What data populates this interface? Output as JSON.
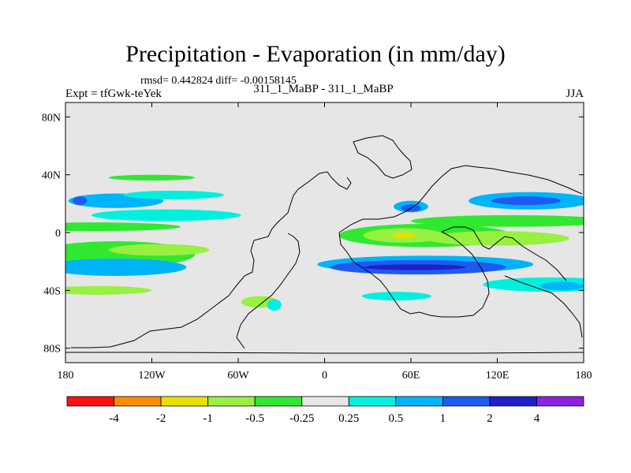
{
  "title": "Precipitation - Evaporation (in mm/day)",
  "stats": "rmsd= 0.442824 diff= -0.00158145",
  "experiment": "Expt = tfGwk-teYek",
  "comparison": "311_1_MaBP - 311_1_MaBP",
  "season": "JJA",
  "map": {
    "lon_ticks": [
      {
        "lon": -180,
        "label": "180"
      },
      {
        "lon": -120,
        "label": "120W"
      },
      {
        "lon": -60,
        "label": "60W"
      },
      {
        "lon": 0,
        "label": "0"
      },
      {
        "lon": 60,
        "label": "60E"
      },
      {
        "lon": 120,
        "label": "120E"
      },
      {
        "lon": 180,
        "label": "180"
      }
    ],
    "lat_ticks": [
      {
        "lat": 80,
        "label": "80N"
      },
      {
        "lat": 40,
        "label": "40N"
      },
      {
        "lat": 0,
        "label": "0"
      },
      {
        "lat": -40,
        "label": "40S"
      },
      {
        "lat": -80,
        "label": "80S"
      }
    ],
    "background_color": "#e6e6e6",
    "regions": [
      {
        "level": "-0.5",
        "lon": [
          -170,
          -120
        ],
        "lat": [
          -12,
          -18
        ],
        "rlon": 30,
        "rlat": 9
      },
      {
        "level": "-1",
        "lon": [
          -135,
          -95
        ],
        "lat": [
          -12,
          -12
        ],
        "rlon": 15,
        "rlat": 4
      },
      {
        "level": "-0.5",
        "lon": [
          -180,
          -140
        ],
        "lat": [
          4,
          4
        ],
        "rlon": 40,
        "rlat": 3
      },
      {
        "level": "0.5",
        "lon": [
          -160,
          -130
        ],
        "lat": [
          22,
          22
        ],
        "rlon": 18,
        "rlat": 5
      },
      {
        "level": "1",
        "lon": [
          -170,
          -170
        ],
        "lat": [
          22,
          22
        ],
        "rlon": 5,
        "rlat": 3
      },
      {
        "level": "0.5",
        "lon": [
          -170,
          -120
        ],
        "lat": [
          -24,
          -24
        ],
        "rlon": 24,
        "rlat": 6
      },
      {
        "level": "0.25",
        "lon": [
          -130,
          -90
        ],
        "lat": [
          12,
          12
        ],
        "rlon": 32,
        "rlat": 4
      },
      {
        "level": "0.25",
        "lon": [
          -120,
          -90
        ],
        "lat": [
          26,
          26
        ],
        "rlon": 20,
        "rlat": 3
      },
      {
        "level": "-0.5",
        "lon": [
          50,
          90
        ],
        "lat": [
          -2,
          -2
        ],
        "rlon": 40,
        "rlat": 8
      },
      {
        "level": "-1",
        "lon": [
          45,
          65
        ],
        "lat": [
          -2,
          -2
        ],
        "rlon": 18,
        "rlat": 5
      },
      {
        "level": "-2",
        "lon": [
          55,
          55
        ],
        "lat": [
          -2,
          -2
        ],
        "rlon": 8,
        "rlat": 2
      },
      {
        "level": "0.5",
        "lon": [
          40,
          100
        ],
        "lat": [
          -22,
          -22
        ],
        "rlon": 45,
        "rlat": 6
      },
      {
        "level": "1",
        "lon": [
          40,
          90
        ],
        "lat": [
          -24,
          -24
        ],
        "rlon": 36,
        "rlat": 5
      },
      {
        "level": "2",
        "lon": [
          45,
          80
        ],
        "lat": [
          -24,
          -24
        ],
        "rlon": 18,
        "rlat": 2
      },
      {
        "level": "0.5",
        "lon": [
          60,
          60
        ],
        "lat": [
          18,
          18
        ],
        "rlon": 12,
        "rlat": 4
      },
      {
        "level": "1",
        "lon": [
          60,
          60
        ],
        "lat": [
          17,
          17
        ],
        "rlon": 7,
        "rlat": 2.5
      },
      {
        "level": "0.5",
        "lon": [
          130,
          155
        ],
        "lat": [
          22,
          22
        ],
        "rlon": 30,
        "rlat": 6
      },
      {
        "level": "1",
        "lon": [
          130,
          150
        ],
        "lat": [
          22,
          22
        ],
        "rlon": 14,
        "rlat": 3
      },
      {
        "level": "-0.5",
        "lon": [
          100,
          160
        ],
        "lat": [
          8,
          8
        ],
        "rlon": 40,
        "rlat": 4
      },
      {
        "level": "0.25",
        "lon": [
          140,
          175
        ],
        "lat": [
          -36,
          -36
        ],
        "rlon": 30,
        "rlat": 5
      },
      {
        "level": "0.5",
        "lon": [
          160,
          170
        ],
        "lat": [
          -37,
          -37
        ],
        "rlon": 10,
        "rlat": 3
      },
      {
        "level": "-0.25",
        "lon": [
          100,
          140
        ],
        "lat": [
          -4,
          -4
        ],
        "rlon": 30,
        "rlat": 5
      },
      {
        "level": "-0.25",
        "lon": [
          -175,
          -140
        ],
        "lat": [
          -40,
          -40
        ],
        "rlon": 20,
        "rlat": 3
      },
      {
        "level": "-0.5",
        "lon": [
          -130,
          -110
        ],
        "lat": [
          38,
          38
        ],
        "rlon": 20,
        "rlat": 2
      },
      {
        "level": "0.25",
        "lon": [
          40,
          60
        ],
        "lat": [
          -44,
          -44
        ],
        "rlon": 14,
        "rlat": 3
      },
      {
        "level": "-0.25",
        "lon": [
          -50,
          -40
        ],
        "lat": [
          -48,
          -48
        ],
        "rlon": 8,
        "rlat": 4
      },
      {
        "level": "0.25",
        "lon": [
          -35,
          -35
        ],
        "lat": [
          -50,
          -50
        ],
        "rlon": 5,
        "rlat": 4
      }
    ]
  },
  "colorbar": {
    "colors": [
      "#ff1010",
      "#ff8c00",
      "#e8e000",
      "#98f040",
      "#30e830",
      "#e6e6e6",
      "#00f0e0",
      "#00b4f8",
      "#1e5af0",
      "#2020c8",
      "#9020e0"
    ],
    "labels": [
      "-4",
      "-2",
      "-1",
      "-0.5",
      "-0.25",
      "0.25",
      "0.5",
      "1",
      "2",
      "4"
    ]
  },
  "level_colors": {
    "-4": "#ff1010",
    "-2": "#e8e000",
    "-1": "#98f040",
    "-0.5": "#30e830",
    "-0.25": "#98f040",
    "0.25": "#00f0e0",
    "0.5": "#00b4f8",
    "1": "#1e5af0",
    "2": "#2020c8"
  }
}
